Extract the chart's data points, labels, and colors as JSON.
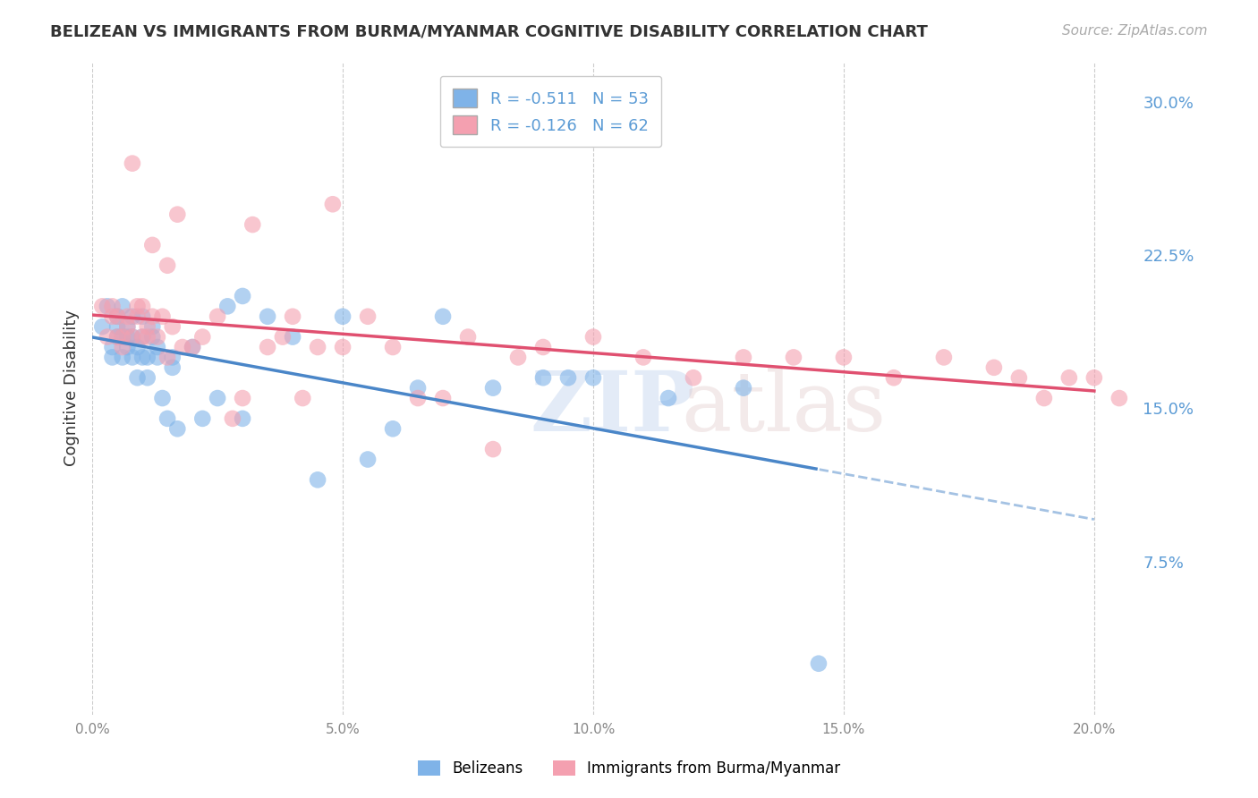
{
  "title": "BELIZEAN VS IMMIGRANTS FROM BURMA/MYANMAR COGNITIVE DISABILITY CORRELATION CHART",
  "source": "Source: ZipAtlas.com",
  "ylabel": "Cognitive Disability",
  "ytick_labels": [
    "30.0%",
    "22.5%",
    "15.0%",
    "7.5%"
  ],
  "ytick_values": [
    0.3,
    0.225,
    0.15,
    0.075
  ],
  "xmin": 0.0,
  "xmax": 0.2,
  "ymin": 0.0,
  "ymax": 0.32,
  "legend_blue_r": "R = -0.511",
  "legend_blue_n": "N = 53",
  "legend_pink_r": "R = -0.126",
  "legend_pink_n": "N = 62",
  "blue_color": "#7fb3e8",
  "pink_color": "#f4a0b0",
  "trend_blue_color": "#4a86c8",
  "trend_pink_color": "#e05070",
  "blue_scatter_x": [
    0.002,
    0.003,
    0.004,
    0.004,
    0.005,
    0.005,
    0.005,
    0.006,
    0.006,
    0.006,
    0.007,
    0.007,
    0.007,
    0.008,
    0.008,
    0.008,
    0.009,
    0.009,
    0.01,
    0.01,
    0.01,
    0.011,
    0.011,
    0.012,
    0.012,
    0.013,
    0.013,
    0.014,
    0.015,
    0.016,
    0.016,
    0.017,
    0.02,
    0.022,
    0.025,
    0.027,
    0.03,
    0.03,
    0.035,
    0.04,
    0.045,
    0.05,
    0.055,
    0.06,
    0.065,
    0.07,
    0.08,
    0.09,
    0.095,
    0.1,
    0.115,
    0.13,
    0.145
  ],
  "blue_scatter_y": [
    0.19,
    0.2,
    0.175,
    0.18,
    0.185,
    0.195,
    0.19,
    0.175,
    0.185,
    0.2,
    0.185,
    0.18,
    0.19,
    0.175,
    0.185,
    0.195,
    0.18,
    0.165,
    0.175,
    0.185,
    0.195,
    0.175,
    0.165,
    0.185,
    0.19,
    0.175,
    0.18,
    0.155,
    0.145,
    0.17,
    0.175,
    0.14,
    0.18,
    0.145,
    0.155,
    0.2,
    0.205,
    0.145,
    0.195,
    0.185,
    0.115,
    0.195,
    0.125,
    0.14,
    0.16,
    0.195,
    0.16,
    0.165,
    0.165,
    0.165,
    0.155,
    0.16,
    0.025
  ],
  "pink_scatter_x": [
    0.002,
    0.003,
    0.004,
    0.004,
    0.005,
    0.005,
    0.006,
    0.006,
    0.007,
    0.007,
    0.008,
    0.008,
    0.009,
    0.009,
    0.01,
    0.01,
    0.011,
    0.011,
    0.012,
    0.012,
    0.013,
    0.014,
    0.015,
    0.015,
    0.016,
    0.017,
    0.018,
    0.02,
    0.022,
    0.025,
    0.028,
    0.03,
    0.032,
    0.035,
    0.038,
    0.04,
    0.042,
    0.045,
    0.048,
    0.05,
    0.055,
    0.06,
    0.065,
    0.07,
    0.075,
    0.08,
    0.085,
    0.09,
    0.1,
    0.11,
    0.12,
    0.13,
    0.14,
    0.15,
    0.16,
    0.17,
    0.18,
    0.185,
    0.19,
    0.195,
    0.2,
    0.205
  ],
  "pink_scatter_y": [
    0.2,
    0.185,
    0.195,
    0.2,
    0.185,
    0.195,
    0.18,
    0.185,
    0.19,
    0.195,
    0.27,
    0.185,
    0.2,
    0.195,
    0.2,
    0.185,
    0.19,
    0.185,
    0.23,
    0.195,
    0.185,
    0.195,
    0.175,
    0.22,
    0.19,
    0.245,
    0.18,
    0.18,
    0.185,
    0.195,
    0.145,
    0.155,
    0.24,
    0.18,
    0.185,
    0.195,
    0.155,
    0.18,
    0.25,
    0.18,
    0.195,
    0.18,
    0.155,
    0.155,
    0.185,
    0.13,
    0.175,
    0.18,
    0.185,
    0.175,
    0.165,
    0.175,
    0.175,
    0.175,
    0.165,
    0.175,
    0.17,
    0.165,
    0.155,
    0.165,
    0.165,
    0.155
  ]
}
